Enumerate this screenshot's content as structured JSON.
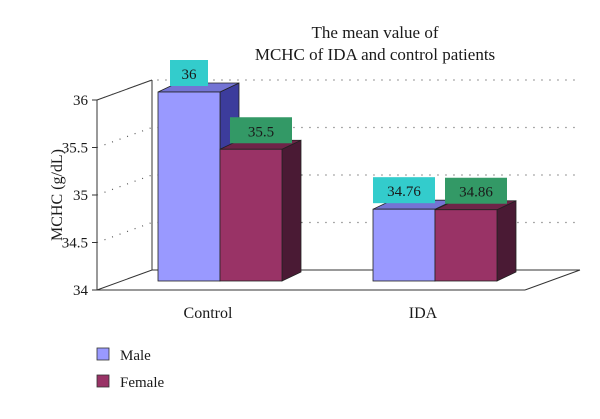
{
  "chart_data": {
    "type": "bar",
    "title": [
      "The mean value of",
      "MCHC of IDA and control patients"
    ],
    "ylabel": "MCHC (g/dL)",
    "xlabel": "",
    "ylim": [
      34,
      36
    ],
    "yticks": [
      "34",
      "34.5",
      "35",
      "35.5",
      "36"
    ],
    "categories": [
      "Control",
      "IDA"
    ],
    "series": [
      {
        "name": "Male",
        "values": [
          36,
          34.76
        ],
        "labels": [
          "36",
          "34.76"
        ]
      },
      {
        "name": "Female",
        "values": [
          35.5,
          34.86
        ],
        "labels": [
          "35.5",
          "34.86"
        ]
      }
    ],
    "grid": "dotted horizontal",
    "legend": "bottom-left",
    "style": "3d-clustered-column"
  },
  "colors": {
    "male_front": "#9999ff",
    "male_side": "#3c3c9c",
    "male_top": "#7474d4",
    "male_label_bg": "#33cccc",
    "female_front": "#993366",
    "female_side": "#4a1a34",
    "female_top": "#6e2448",
    "female_label_bg": "#339966"
  }
}
